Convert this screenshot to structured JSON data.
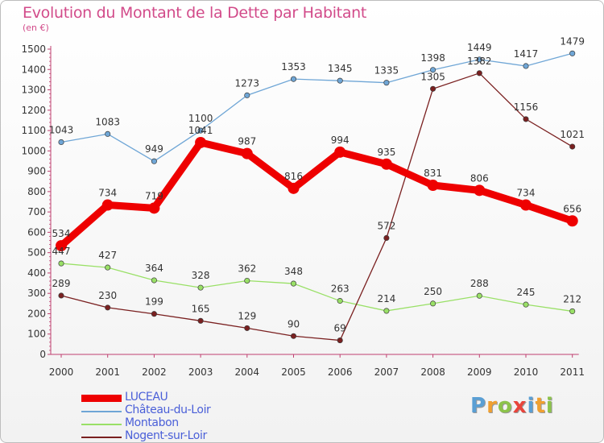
{
  "title": "Evolution du Montant de la Dette par Habitant",
  "subtitle": "(en €)",
  "brand": {
    "letters": [
      {
        "ch": "P",
        "color": "#5a9fd4"
      },
      {
        "ch": "r",
        "color": "#f0a030"
      },
      {
        "ch": "o",
        "color": "#8cc34a"
      },
      {
        "ch": "x",
        "color": "#e8453c"
      },
      {
        "ch": "i",
        "color": "#5a9fd4"
      },
      {
        "ch": "t",
        "color": "#f0a030"
      },
      {
        "ch": "i",
        "color": "#8cc34a"
      }
    ]
  },
  "chart_data": {
    "type": "line",
    "categories": [
      "2000",
      "2001",
      "2002",
      "2003",
      "2004",
      "2005",
      "2006",
      "2007",
      "2008",
      "2009",
      "2010",
      "2011"
    ],
    "ylim": [
      0,
      1500
    ],
    "yticks": [
      0,
      100,
      200,
      300,
      400,
      500,
      600,
      700,
      800,
      900,
      1000,
      1100,
      1200,
      1300,
      1400,
      1500
    ],
    "grid": false,
    "legend_position": "bottom-left",
    "series": [
      {
        "name": "LUCEAU",
        "color": "#ee0000",
        "emphasis": true,
        "values": [
          534,
          734,
          719,
          1041,
          987,
          816,
          994,
          935,
          831,
          806,
          734,
          656
        ]
      },
      {
        "name": "Château-du-Loir",
        "color": "#6fa6d6",
        "values": [
          1043,
          1083,
          949,
          1100,
          1273,
          1353,
          1345,
          1335,
          1398,
          1449,
          1417,
          1479
        ]
      },
      {
        "name": "Montabon",
        "color": "#99e066",
        "values": [
          447,
          427,
          364,
          328,
          362,
          348,
          263,
          214,
          250,
          288,
          245,
          212
        ]
      },
      {
        "name": "Nogent-sur-Loir",
        "color": "#7a2020",
        "values": [
          289,
          230,
          199,
          165,
          129,
          90,
          69,
          572,
          1305,
          1382,
          1156,
          1021
        ]
      }
    ]
  }
}
